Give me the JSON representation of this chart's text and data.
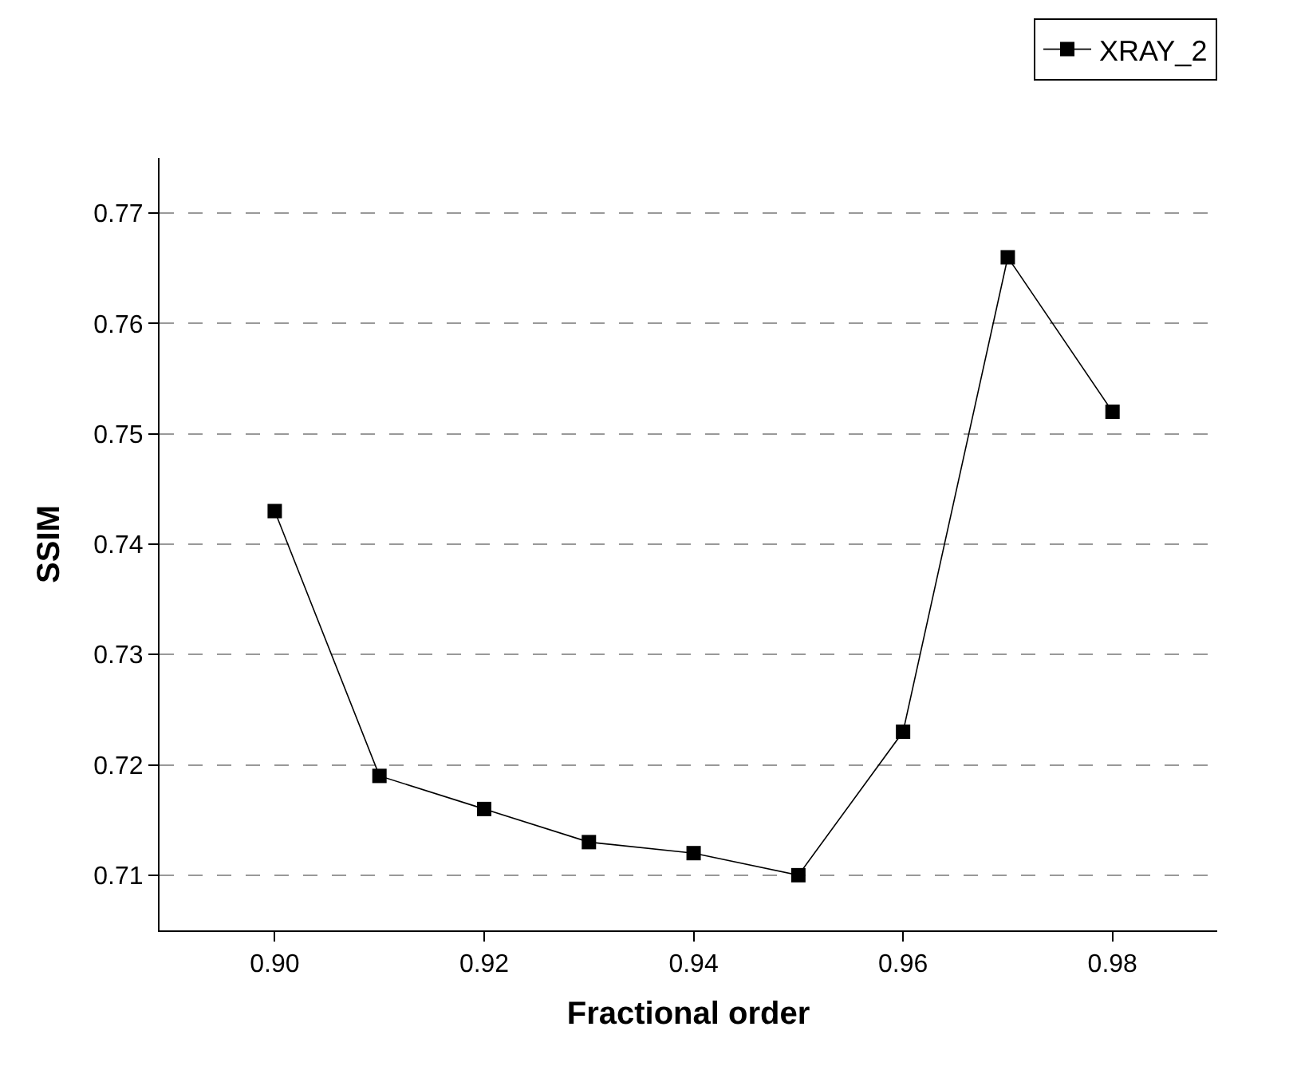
{
  "chart_data": {
    "type": "line",
    "xlabel": "Fractional order",
    "ylabel": "SSIM",
    "x": [
      0.9,
      0.91,
      0.92,
      0.93,
      0.94,
      0.95,
      0.96,
      0.97,
      0.98
    ],
    "series": [
      {
        "name": "XRAY_2",
        "color": "#000000",
        "values": [
          0.743,
          0.719,
          0.716,
          0.713,
          0.712,
          0.71,
          0.723,
          0.766,
          0.752
        ]
      }
    ],
    "xlim": [
      0.889,
      0.99
    ],
    "xticks": [
      {
        "value": 0.9,
        "label": "0.90"
      },
      0.92,
      0.94,
      0.96,
      0.98
    ],
    "ylim": [
      0.705,
      0.775
    ],
    "yticks": [
      {
        "value": 0.71,
        "label": "0.71"
      },
      0.72,
      0.73,
      0.74,
      0.75,
      0.76,
      0.77
    ],
    "grid": "y",
    "legend": "top right",
    "marker": "square",
    "line_style": "solid"
  }
}
